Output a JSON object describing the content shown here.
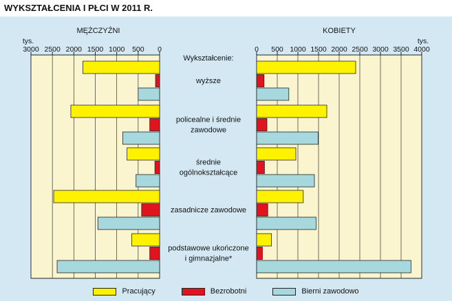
{
  "header": {
    "title": "WYKSZTAŁCENIA I PŁCI W 2011 R."
  },
  "chart_data": {
    "type": "bar",
    "orientation": "horizontal",
    "category_header": "Wykształcenie:",
    "categories": [
      [
        "wyższe"
      ],
      [
        "policealne i średnie",
        "zawodowe"
      ],
      [
        "średnie",
        "ogólnokształcące"
      ],
      [
        "zasadnicze zawodowe"
      ],
      [
        "podstawowe ukończone",
        "i gimnazjalne*"
      ]
    ],
    "unit": "tys.",
    "panels": [
      {
        "title": "MĘŻCZYŹNI",
        "direction": "right-to-left",
        "xlim": [
          0,
          3000
        ],
        "ticks": [
          0,
          500,
          1000,
          1500,
          2000,
          2500,
          3000
        ],
        "series": [
          {
            "name": "Pracujący",
            "values": [
              1790,
              2070,
              760,
              2470,
              650
            ]
          },
          {
            "name": "Bezrobotni",
            "values": [
              95,
              230,
              110,
              420,
              230
            ]
          },
          {
            "name": "Bierni zawodowo",
            "values": [
              500,
              860,
              550,
              1440,
              2390
            ]
          }
        ]
      },
      {
        "title": "KOBIETY",
        "direction": "left-to-right",
        "xlim": [
          0,
          4000
        ],
        "ticks": [
          0,
          500,
          1000,
          1500,
          2000,
          2500,
          3000,
          3500,
          4000
        ],
        "series": [
          {
            "name": "Pracujący",
            "values": [
              2400,
              1700,
              950,
              1130,
              360
            ]
          },
          {
            "name": "Bezrobotni",
            "values": [
              180,
              250,
              190,
              270,
              140
            ]
          },
          {
            "name": "Bierni zawodowo",
            "values": [
              780,
              1490,
              1400,
              1440,
              3740
            ]
          }
        ]
      }
    ],
    "colors": {
      "Pracujący": "#fff200",
      "Bezrobotni": "#e0141e",
      "Bierni zawodowo": "#a6d8dd"
    },
    "plot_background": "#fbf5cf",
    "grid": true,
    "legend": {
      "position": "bottom",
      "items": [
        "Pracujący",
        "Bezrobotni",
        "Bierni zawodowo"
      ]
    }
  }
}
